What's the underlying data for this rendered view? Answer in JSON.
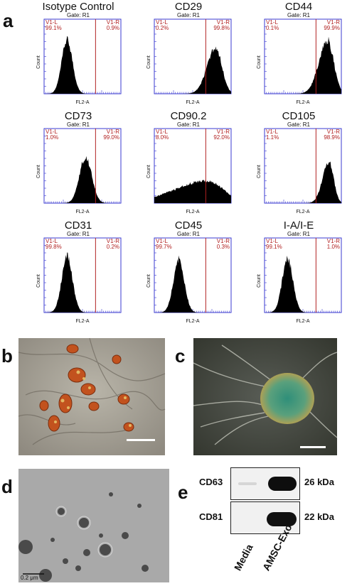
{
  "panel_letters": {
    "a": "a",
    "b": "b",
    "c": "c",
    "d": "d",
    "e": "e"
  },
  "flow": {
    "gate_label": "Gate: R1",
    "left_gate_name": "V1-L",
    "right_gate_name": "V1-R",
    "x_axis_label": "FL2-A",
    "y_axis_label": "Count",
    "plots": [
      {
        "title": "Isotype Control",
        "left_pct": "99.1%",
        "right_pct": "0.9%",
        "peak": 0.3,
        "width": 0.07,
        "height": 0.72,
        "skew": 0
      },
      {
        "title": "CD29",
        "left_pct": "0.2%",
        "right_pct": "99.8%",
        "peak": 0.8,
        "width": 0.08,
        "height": 0.62,
        "skew": 1
      },
      {
        "title": "CD44",
        "left_pct": "0.1%",
        "right_pct": "99.9%",
        "peak": 0.82,
        "width": 0.08,
        "height": 0.72,
        "skew": 1
      },
      {
        "title": "CD73",
        "left_pct": "1.0%",
        "right_pct": "99.0%",
        "peak": 0.54,
        "width": 0.08,
        "height": 0.62,
        "skew": 0
      },
      {
        "title": "CD90.2",
        "left_pct": "8.0%",
        "right_pct": "92.0%",
        "peak": 0.7,
        "width": 0.2,
        "height": 0.3,
        "skew": 2
      },
      {
        "title": "CD105",
        "left_pct": "1.1%",
        "right_pct": "98.9%",
        "peak": 0.84,
        "width": 0.06,
        "height": 0.55,
        "skew": 1
      },
      {
        "title": "CD31",
        "left_pct": "99.8%",
        "right_pct": "0.2%",
        "peak": 0.3,
        "width": 0.07,
        "height": 0.75,
        "skew": 0
      },
      {
        "title": "CD45",
        "left_pct": "99.7%",
        "right_pct": "0.3%",
        "peak": 0.32,
        "width": 0.07,
        "height": 0.72,
        "skew": 0
      },
      {
        "title": "I-A/I-E",
        "left_pct": "99.1%",
        "right_pct": "1.0%",
        "peak": 0.3,
        "width": 0.07,
        "height": 0.72,
        "skew": 0
      }
    ]
  },
  "scale_label_d": "0.2 μm",
  "western": {
    "bands": [
      {
        "name": "CD63",
        "size": "26 kDa"
      },
      {
        "name": "CD81",
        "size": "22 kDa"
      }
    ],
    "lanes": [
      "Media",
      "AMSC-Exo"
    ]
  },
  "colors": {
    "gate_line": "#b22222",
    "axis_frame": "#3a3ad0",
    "gate_text": "#b22222"
  }
}
